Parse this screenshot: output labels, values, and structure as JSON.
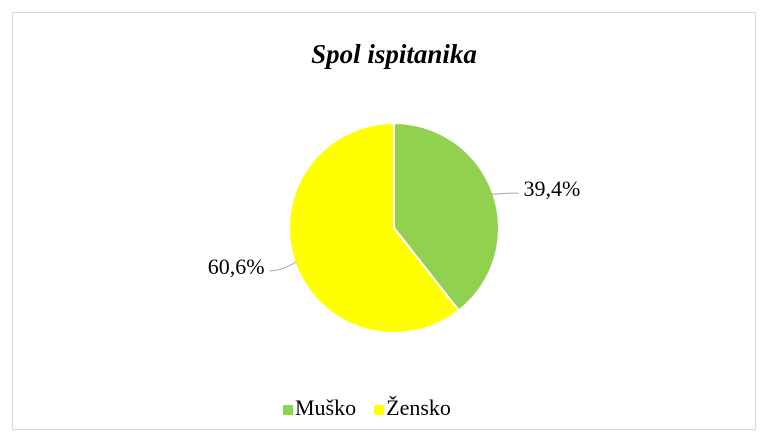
{
  "chart_data": {
    "type": "pie",
    "title": "Spol ispitanika",
    "categories": [
      "Muško",
      "Žensko"
    ],
    "values": [
      39.4,
      60.6
    ],
    "value_labels": [
      "39,4%",
      "60,6%"
    ],
    "colors": [
      "#92d050",
      "#ffff00"
    ],
    "legend": "bottom"
  }
}
